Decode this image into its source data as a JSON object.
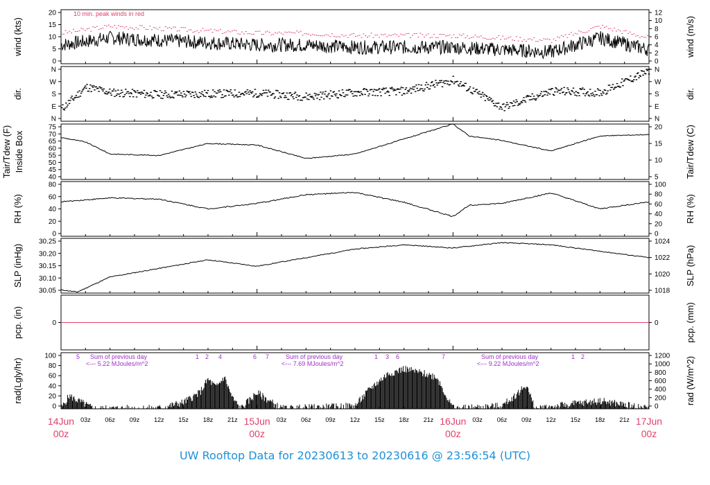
{
  "title": "UW Rooftop Data for 20230613  to  20230616 @ 23:56:54  (UTC)",
  "colors": {
    "title": "#1e90d8",
    "date_labels": "#e0406a",
    "peak_wind": "#e0406a",
    "pcp_line": "#e0406a",
    "annotations": "#9b30c8",
    "trace": "#000000"
  },
  "chart_data": [
    {
      "type": "line",
      "ylabel": "wind (kts)",
      "ylabel_right": "wind (m/s)",
      "ylim": [
        0,
        23
      ],
      "ylim_right": [
        0,
        12
      ],
      "yticks": [
        "0",
        "5",
        "10",
        "15",
        "20"
      ],
      "yticks_right": [
        "0",
        "2",
        "4",
        "6",
        "8",
        "10",
        "12"
      ],
      "annotation": "10 min. peak winds in red",
      "series": [
        {
          "x": [
            0,
            6,
            12,
            18,
            24,
            30,
            36,
            42,
            48,
            54,
            60,
            66,
            72
          ],
          "values": [
            8,
            11,
            10,
            9,
            8,
            8,
            7,
            7,
            7,
            6,
            5,
            11,
            6
          ]
        }
      ]
    },
    {
      "type": "scatter",
      "ylabel": "dir.",
      "ylabel_right": "dir.",
      "yticks": [
        "N",
        "E",
        "S",
        "W",
        "N"
      ],
      "yticks_right": [
        "N",
        "E",
        "S",
        "W",
        "N"
      ],
      "series": [
        {
          "x": [
            0,
            3,
            6,
            12,
            18,
            24,
            30,
            36,
            42,
            48,
            54,
            60,
            66,
            72
          ],
          "values": [
            70,
            230,
            190,
            175,
            180,
            185,
            160,
            190,
            200,
            280,
            80,
            200,
            190,
            350
          ]
        }
      ]
    },
    {
      "type": "line",
      "ylabel": "Tair/Tdew (F)\nInside Box",
      "ylabel_right": "Tair/Tdew (C)",
      "ylim": [
        38,
        75
      ],
      "yticks": [
        "40",
        "45",
        "50",
        "55",
        "60",
        "65",
        "70",
        "75"
      ],
      "yticks_right": [
        "5",
        "10",
        "15",
        "20"
      ],
      "series": [
        {
          "x": [
            0,
            3,
            6,
            12,
            18,
            24,
            30,
            36,
            42,
            48,
            50,
            54,
            60,
            66,
            72
          ],
          "values": [
            66,
            63,
            55,
            54,
            62,
            61,
            52,
            55,
            65,
            75,
            67,
            64,
            57,
            67,
            68
          ]
        }
      ]
    },
    {
      "type": "line",
      "ylabel": "RH (%)",
      "ylabel_right": "RH (%)",
      "ylim": [
        0,
        100
      ],
      "yticks": [
        "0",
        "20",
        "40",
        "60",
        "80"
      ],
      "yticks_right": [
        "0",
        "20",
        "40",
        "60",
        "80",
        "100"
      ],
      "series": [
        {
          "x": [
            0,
            6,
            12,
            18,
            24,
            30,
            36,
            42,
            48,
            50,
            54,
            60,
            66,
            72
          ],
          "values": [
            63,
            70,
            68,
            50,
            60,
            76,
            80,
            62,
            36,
            57,
            60,
            79,
            50,
            63
          ]
        }
      ]
    },
    {
      "type": "line",
      "ylabel": "SLP (inHg)",
      "ylabel_right": "SLP (hPa)",
      "ylim": [
        30.025,
        30.28
      ],
      "yticks": [
        "30.05",
        "30.10",
        "30.15",
        "30.20",
        "30.25"
      ],
      "yticks_right": [
        "1018",
        "1020",
        "1022",
        "1024"
      ],
      "series": [
        {
          "x": [
            0,
            2,
            6,
            12,
            18,
            24,
            30,
            36,
            42,
            48,
            54,
            60,
            66,
            72
          ],
          "values": [
            30.04,
            30.03,
            30.1,
            30.14,
            30.18,
            30.15,
            30.19,
            30.23,
            30.25,
            30.235,
            30.26,
            30.25,
            30.22,
            30.19
          ]
        }
      ]
    },
    {
      "type": "line",
      "ylabel": "pcp. (in)",
      "ylabel_right": "pcp. (mm)",
      "yticks": [
        "0"
      ],
      "yticks_right": [
        "0"
      ],
      "series": [
        {
          "x": [
            0,
            72
          ],
          "values": [
            0,
            0
          ]
        }
      ]
    },
    {
      "type": "area",
      "ylabel": "rad(Lgly/hr)",
      "ylabel_right": "rad (W/m^2)",
      "ylim": [
        0,
        105
      ],
      "yticks": [
        "0",
        "20",
        "40",
        "60",
        "80",
        "100"
      ],
      "yticks_right": [
        "0",
        "200",
        "400",
        "600",
        "800",
        "1000",
        "1200"
      ],
      "annotations": [
        "5",
        "Sum of previous day",
        "<--- 5.22 MJoules/m^2",
        "1",
        "2",
        "4",
        "6",
        "7",
        "Sum of previous day",
        "<--- 7.69 MJoules/m^2",
        "1",
        "3",
        "6",
        "7",
        "Sum of previous day",
        "<--- 9.22 MJoules/m^2",
        "1",
        "2"
      ],
      "series": [
        {
          "x": [
            0,
            1,
            4,
            12,
            15,
            17,
            18,
            19,
            20,
            21,
            22,
            24,
            27,
            36,
            38,
            40,
            42,
            46,
            48,
            54,
            56,
            57,
            58,
            66,
            68,
            72
          ],
          "values": [
            0,
            24,
            0,
            1,
            12,
            30,
            55,
            40,
            60,
            20,
            0,
            30,
            0,
            5,
            40,
            65,
            75,
            60,
            0,
            5,
            30,
            45,
            0,
            15,
            10,
            0
          ]
        }
      ],
      "x_ticks": [
        "03z",
        "06z",
        "09z",
        "12z",
        "15z",
        "18z",
        "21z",
        "03z",
        "06z",
        "09z",
        "12z",
        "15z",
        "18z",
        "21z",
        "03z",
        "06z",
        "09z",
        "12z",
        "15z",
        "18z",
        "21z"
      ],
      "date_labels": [
        {
          "day": "14Jun",
          "time": "00z"
        },
        {
          "day": "15Jun",
          "time": "00z"
        },
        {
          "day": "16Jun",
          "time": "00z"
        },
        {
          "day": "17Jun",
          "time": "00z"
        }
      ]
    }
  ]
}
